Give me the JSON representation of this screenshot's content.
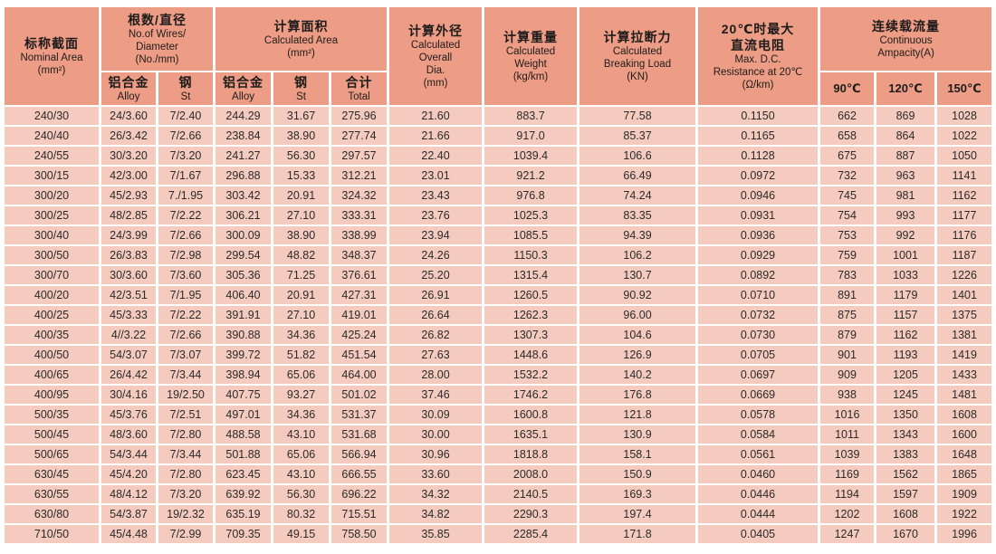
{
  "colors": {
    "header_bg": "#ED9D85",
    "row_bg": "#F4CBBE",
    "grid": "#FFFFFF",
    "text": "#2B2B2B"
  },
  "table": {
    "header": {
      "nominal_area": {
        "zh": "标称截面",
        "en": "Nominal Area\n(mm²)"
      },
      "wires_diameter": {
        "zh": "根数/直径",
        "en": "No.of Wires/\nDiameter\n(No./mm)"
      },
      "calculated_area": {
        "zh": "计算面积",
        "en": "Calculated Area\n(mm²)"
      },
      "overall_dia": {
        "zh": "计算外径",
        "en": "Calculated\nOverall\nDia.\n(mm)"
      },
      "weight": {
        "zh": "计算重量",
        "en": "Calculated\nWeight\n(kg/km)"
      },
      "breaking_load": {
        "zh": "计算拉断力",
        "en": "Calculated\nBreaking Load\n(KN)"
      },
      "dc_resistance": {
        "zh": "20℃时最大\n直流电阻",
        "en": "Max. D.C.\nResistance at 20℃\n(Ω/km)"
      },
      "ampacity": {
        "zh": "连续载流量",
        "en": "Continuous\nAmpacity(A)",
        "sub": [
          "90℃",
          "120℃",
          "150℃"
        ]
      },
      "sub_alloy": {
        "zh": "铝合金",
        "en": "Alloy"
      },
      "sub_steel": {
        "zh": "钢",
        "en": "St"
      },
      "sub_total": {
        "zh": "合计",
        "en": "Total"
      }
    },
    "column_keys": [
      "nominal-area",
      "wires-alloy",
      "wires-steel",
      "area-alloy",
      "area-steel",
      "area-total",
      "overall-dia",
      "weight",
      "breaking-load",
      "dc-resistance",
      "ampacity-90",
      "ampacity-120",
      "ampacity-150"
    ],
    "rows": [
      [
        "240/30",
        "24/3.60",
        "7/2.40",
        "244.29",
        "31.67",
        "275.96",
        "21.60",
        "883.7",
        "77.58",
        "0.1150",
        "662",
        "869",
        "1028"
      ],
      [
        "240/40",
        "26/3.42",
        "7/2.66",
        "238.84",
        "38.90",
        "277.74",
        "21.66",
        "917.0",
        "85.37",
        "0.1165",
        "658",
        "864",
        "1022"
      ],
      [
        "240/55",
        "30/3.20",
        "7/3.20",
        "241.27",
        "56.30",
        "297.57",
        "22.40",
        "1039.4",
        "106.6",
        "0.1128",
        "675",
        "887",
        "1050"
      ],
      [
        "300/15",
        "42/3.00",
        "7/1.67",
        "296.88",
        "15.33",
        "312.21",
        "23.01",
        "921.2",
        "66.49",
        "0.0972",
        "732",
        "963",
        "1141"
      ],
      [
        "300/20",
        "45/2.93",
        "7./1.95",
        "303.42",
        "20.91",
        "324.32",
        "23.43",
        "976.8",
        "74.24",
        "0.0946",
        "745",
        "981",
        "1162"
      ],
      [
        "300/25",
        "48/2.85",
        "7/2.22",
        "306.21",
        "27.10",
        "333.31",
        "23.76",
        "1025.3",
        "83.35",
        "0.0931",
        "754",
        "993",
        "1177"
      ],
      [
        "300/40",
        "24/3.99",
        "7/2.66",
        "300.09",
        "38.90",
        "338.99",
        "23.94",
        "1085.5",
        "94.39",
        "0.0936",
        "753",
        "992",
        "1176"
      ],
      [
        "300/50",
        "26/3.83",
        "7/2.98",
        "299.54",
        "48.82",
        "348.37",
        "24.26",
        "1150.3",
        "106.2",
        "0.0929",
        "759",
        "1001",
        "1187"
      ],
      [
        "300/70",
        "30/3.60",
        "7/3.60",
        "305.36",
        "71.25",
        "376.61",
        "25.20",
        "1315.4",
        "130.7",
        "0.0892",
        "783",
        "1033",
        "1226"
      ],
      [
        "400/20",
        "42/3.51",
        "7/1.95",
        "406.40",
        "20.91",
        "427.31",
        "26.91",
        "1260.5",
        "90.92",
        "0.0710",
        "891",
        "1179",
        "1401"
      ],
      [
        "400/25",
        "45/3.33",
        "7/2.22",
        "391.91",
        "27.10",
        "419.01",
        "26.64",
        "1262.3",
        "96.00",
        "0.0732",
        "875",
        "1157",
        "1375"
      ],
      [
        "400/35",
        "4//3.22",
        "7/2.66",
        "390.88",
        "34.36",
        "425.24",
        "26.82",
        "1307.3",
        "104.6",
        "0.0730",
        "879",
        "1162",
        "1381"
      ],
      [
        "400/50",
        "54/3.07",
        "7/3.07",
        "399.72",
        "51.82",
        "451.54",
        "27.63",
        "1448.6",
        "126.9",
        "0.0705",
        "901",
        "1193",
        "1419"
      ],
      [
        "400/65",
        "26/4.42",
        "7/3.44",
        "398.94",
        "65.06",
        "464.00",
        "28.00",
        "1532.2",
        "140.2",
        "0.0697",
        "909",
        "1205",
        "1433"
      ],
      [
        "400/95",
        "30/4.16",
        "19/2.50",
        "407.75",
        "93.27",
        "501.02",
        "37.46",
        "1746.2",
        "176.8",
        "0.0669",
        "938",
        "1245",
        "1481"
      ],
      [
        "500/35",
        "45/3.76",
        "7/2.51",
        "497.01",
        "34.36",
        "531.37",
        "30.09",
        "1600.8",
        "121.8",
        "0.0578",
        "1016",
        "1350",
        "1608"
      ],
      [
        "500/45",
        "48/3.60",
        "7/2.80",
        "488.58",
        "43.10",
        "531.68",
        "30.00",
        "1635.1",
        "130.9",
        "0.0584",
        "1011",
        "1343",
        "1600"
      ],
      [
        "500/65",
        "54/3.44",
        "7/3.44",
        "501.88",
        "65.06",
        "566.94",
        "30.96",
        "1818.8",
        "158.1",
        "0.0561",
        "1039",
        "1383",
        "1648"
      ],
      [
        "630/45",
        "45/4.20",
        "7/2.80",
        "623.45",
        "43.10",
        "666.55",
        "33.60",
        "2008.0",
        "150.9",
        "0.0460",
        "1169",
        "1562",
        "1865"
      ],
      [
        "630/55",
        "48/4.12",
        "7/3.20",
        "639.92",
        "56.30",
        "696.22",
        "34.32",
        "2140.5",
        "169.3",
        "0.0446",
        "1194",
        "1597",
        "1909"
      ],
      [
        "630/80",
        "54/3.87",
        "19/2.32",
        "635.19",
        "80.32",
        "715.51",
        "34.82",
        "2290.3",
        "197.4",
        "0.0444",
        "1202",
        "1608",
        "1922"
      ],
      [
        "710/50",
        "45/4.48",
        "7/2.99",
        "709.35",
        "49.15",
        "758.50",
        "35.85",
        "2285.4",
        "171.8",
        "0.0405",
        "1247",
        "1670",
        "1996"
      ]
    ]
  }
}
